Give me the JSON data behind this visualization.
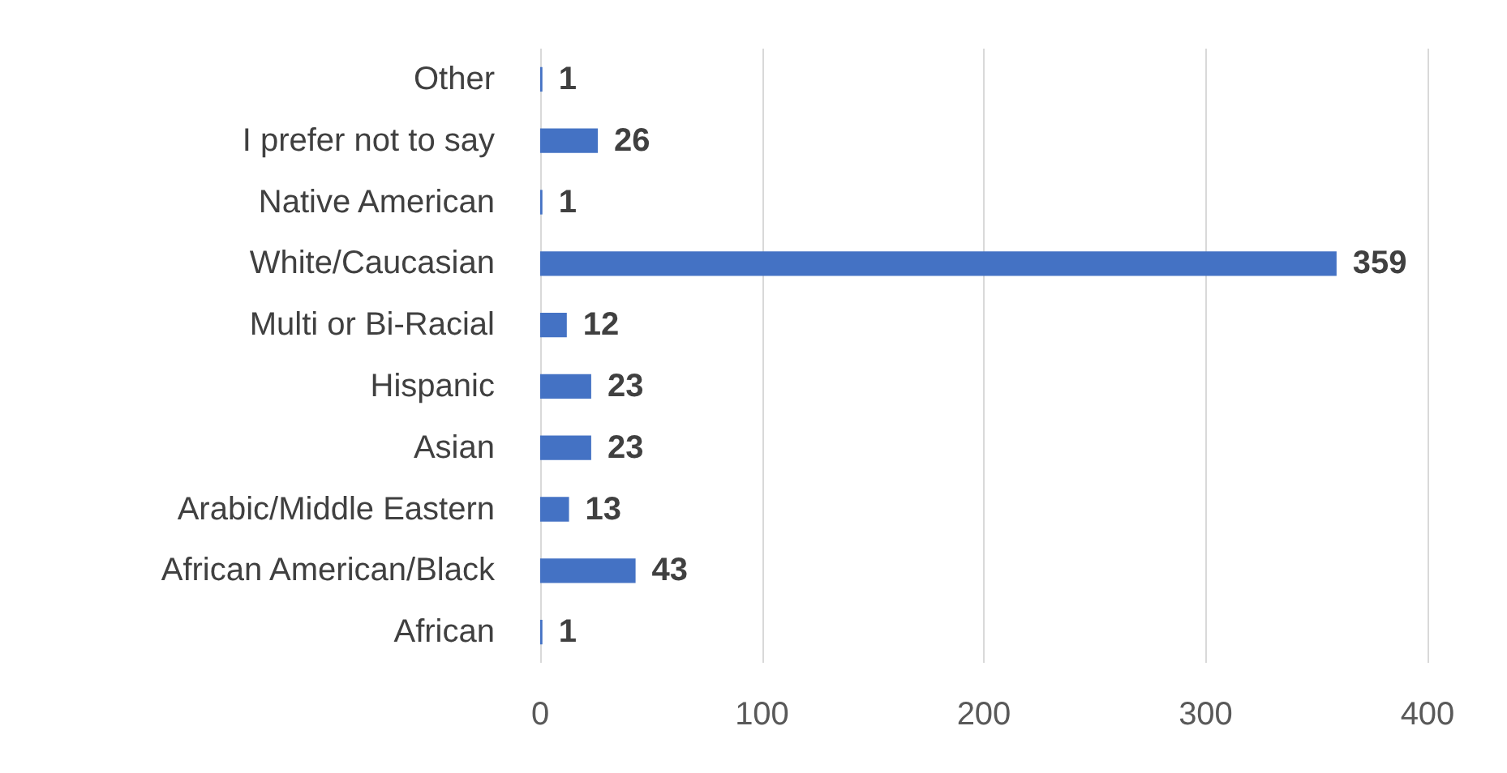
{
  "chart_data": {
    "type": "bar",
    "orientation": "horizontal",
    "categories": [
      "Other",
      "I prefer not to say",
      "Native American",
      "White/Caucasian",
      "Multi or Bi-Racial",
      "Hispanic",
      "Asian",
      "Arabic/Middle Eastern",
      "African American/Black",
      "African"
    ],
    "values": [
      1,
      26,
      1,
      359,
      12,
      23,
      23,
      13,
      43,
      1
    ],
    "color": "#4472c4",
    "xlim": [
      0,
      400
    ],
    "xticks": [
      0,
      100,
      200,
      300,
      400
    ],
    "grid": "x",
    "data_labels": true
  }
}
